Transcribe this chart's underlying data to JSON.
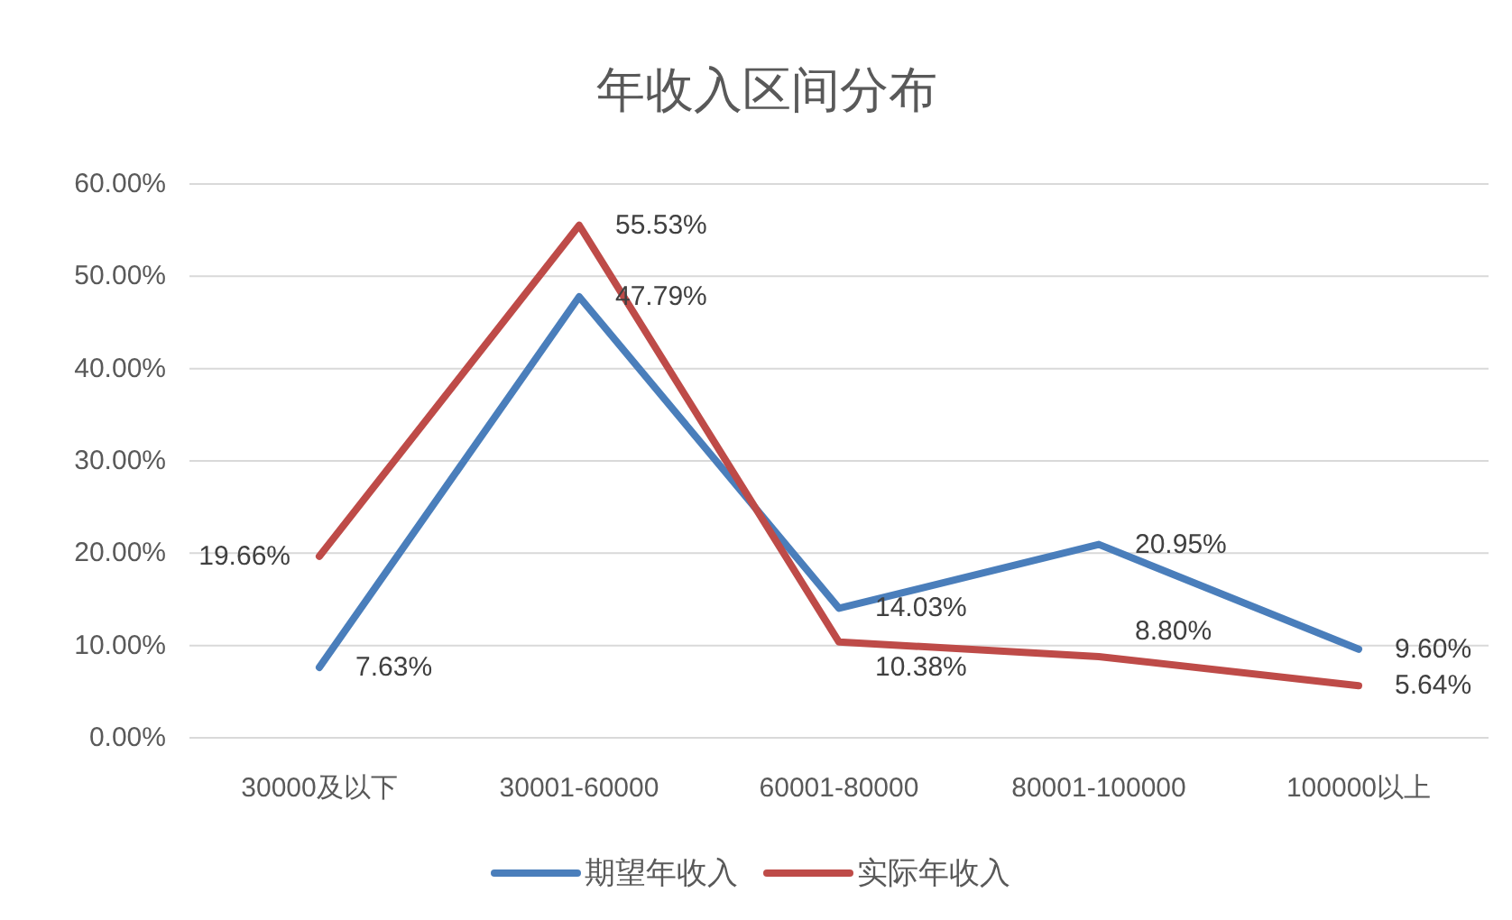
{
  "chart_data": {
    "type": "line",
    "title": "年收入区间分布",
    "categories": [
      "30000及以下",
      "30001-60000",
      "60001-80000",
      "80001-100000",
      "100000以上"
    ],
    "series": [
      {
        "name": "期望年收入",
        "color": "#4a7ebb",
        "values": [
          7.63,
          47.79,
          14.03,
          20.95,
          9.6
        ],
        "value_labels": [
          "7.63%",
          "47.79%",
          "14.03%",
          "20.95%",
          "9.60%"
        ]
      },
      {
        "name": "实际年收入",
        "color": "#be4b48",
        "values": [
          19.66,
          55.53,
          10.38,
          8.8,
          5.64
        ],
        "value_labels": [
          "19.66%",
          "55.53%",
          "10.38%",
          "8.80%",
          "5.64%"
        ]
      }
    ],
    "ylim": [
      0,
      60
    ],
    "yticks": [
      {
        "value": 0,
        "label": "0.00%"
      },
      {
        "value": 10,
        "label": "10.00%"
      },
      {
        "value": 20,
        "label": "20.00%"
      },
      {
        "value": 30,
        "label": "30.00%"
      },
      {
        "value": 40,
        "label": "40.00%"
      },
      {
        "value": 50,
        "label": "50.00%"
      },
      {
        "value": 60,
        "label": "60.00%"
      }
    ],
    "grid": "y",
    "legend": "bottom",
    "line_style": "solid"
  }
}
